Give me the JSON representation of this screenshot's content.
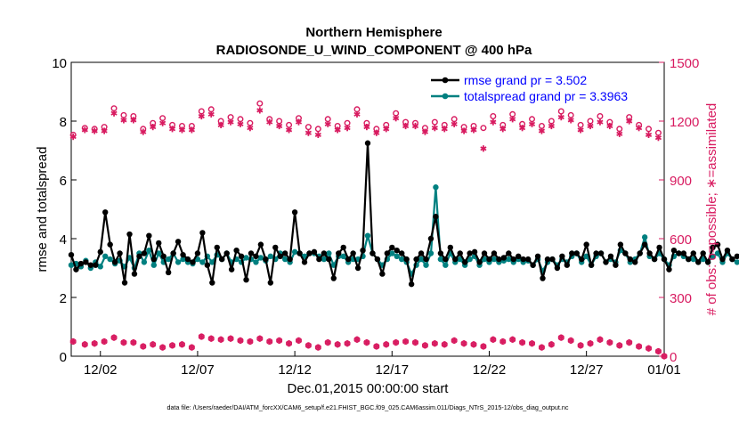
{
  "figure": {
    "title_line1": "Northern Hemisphere",
    "title_line2": "RADIOSONDE_U_WIND_COMPONENT @ 400 hPa",
    "xlabel": "Dec.01,2015 00:00:00 start",
    "ylabel_left": "rmse and totalspread",
    "ylabel_right": "# of obs: o=possible; ∗=assimilated",
    "footer": "data file: /Users/raeder/DAI/ATM_forcXX/CAM6_setup/f.e21.FHIST_BGC.f09_025.CAM6assim.011/Diags_NTrS_2015-12/obs_diag_output.nc",
    "colors": {
      "rmse": "#000000",
      "spread": "#008080",
      "obs": "#d81b60",
      "legend_text": "#0000ff"
    }
  },
  "chart_data": {
    "type": "line",
    "title": "Northern Hemisphere / RADIOSONDE_U_WIND_COMPONENT @ 400 hPa",
    "xlabel": "Dec.01,2015 00:00:00 start",
    "ylabel": "rmse and totalspread",
    "y2label": "# of obs: o=possible; ∗=assimilated",
    "xlim": [
      0.5,
      31.0
    ],
    "ylim": [
      0,
      10
    ],
    "y2lim": [
      0,
      1500
    ],
    "x_ticks": [
      2,
      7,
      12,
      17,
      22,
      27,
      31
    ],
    "x_tick_labels": [
      "12/02",
      "12/07",
      "12/12",
      "12/17",
      "12/22",
      "12/27",
      "01/01"
    ],
    "y_ticks": [
      0,
      2,
      4,
      6,
      8,
      10
    ],
    "y2_ticks": [
      0,
      300,
      600,
      900,
      1200,
      1500
    ],
    "grid": false,
    "legend": [
      {
        "label": "rmse grand pr = 3.502",
        "series": "rmse"
      },
      {
        "label": "totalspread grand pr = 3.3963",
        "series": "spread"
      }
    ],
    "legend_position": "top-right",
    "x_start": 0.5,
    "x_step": 0.25,
    "series": [
      {
        "name": "rmse",
        "axis": "left",
        "values": [
          3.45,
          2.95,
          3.15,
          3.2,
          3.1,
          3.1,
          3.55,
          4.9,
          3.8,
          3.2,
          3.5,
          2.5,
          4.15,
          2.8,
          3.4,
          3.5,
          4.1,
          3.3,
          3.85,
          3.4,
          2.85,
          3.5,
          3.9,
          3.45,
          3.3,
          3.2,
          3.5,
          4.2,
          3.1,
          2.5,
          3.7,
          3.3,
          3.5,
          2.95,
          3.6,
          3.4,
          2.6,
          3.5,
          3.4,
          3.8,
          3.3,
          2.5,
          3.7,
          3.4,
          3.5,
          3.3,
          4.9,
          3.5,
          3.2,
          3.5,
          3.55,
          3.3,
          3.5,
          3.3,
          2.65,
          3.5,
          3.7,
          3.3,
          3.5,
          3.0,
          3.6,
          7.25,
          3.5,
          3.3,
          2.8,
          3.5,
          3.7,
          3.6,
          3.5,
          3.3,
          2.45,
          3.3,
          3.5,
          3.3,
          4.0,
          4.75,
          3.5,
          3.3,
          3.7,
          3.3,
          3.5,
          3.2,
          3.5,
          3.55,
          3.2,
          3.5,
          3.3,
          3.5,
          3.3,
          3.35,
          3.5,
          3.3,
          3.4,
          3.3,
          3.3,
          3.1,
          3.4,
          2.65,
          3.3,
          3.3,
          3.0,
          3.4,
          3.1,
          3.5,
          3.5,
          3.3,
          3.8,
          3.1,
          3.5,
          3.5,
          3.2,
          3.4,
          3.1,
          3.8,
          3.5,
          3.3,
          3.2,
          3.5,
          3.8,
          3.5,
          3.3,
          3.7,
          3.3,
          2.95,
          3.6,
          3.5,
          3.5,
          3.3,
          3.5,
          3.2,
          3.5,
          3.2,
          3.7,
          3.8,
          3.3,
          3.6,
          3.3,
          3.4,
          3.5,
          4.2,
          3.5,
          3.3,
          3.5,
          3.3,
          3.6,
          3.3,
          2.8,
          3.4,
          3.3,
          3.5,
          3.3,
          3.8,
          3.5,
          3.3,
          3.5,
          3.3,
          3.5,
          3.3,
          3.4,
          2.6,
          3.3,
          2.5,
          3.5,
          2.5,
          3.3,
          3.8,
          3.4,
          3.9,
          3.5,
          3.7,
          3.4,
          3.8,
          3.3,
          3.5,
          3.2,
          3.6,
          2.7,
          3.4,
          3.6,
          3.9
        ]
      },
      {
        "name": "totalspread",
        "axis": "left",
        "values": [
          3.1,
          3.15,
          3.05,
          3.25,
          3.0,
          3.2,
          3.05,
          3.4,
          3.3,
          3.15,
          3.25,
          3.05,
          3.35,
          3.0,
          3.5,
          3.2,
          3.6,
          3.1,
          3.5,
          3.2,
          3.3,
          3.5,
          3.2,
          3.3,
          3.2,
          3.15,
          3.3,
          3.2,
          3.4,
          3.2,
          3.45,
          3.3,
          3.5,
          3.2,
          3.3,
          3.2,
          3.35,
          3.3,
          3.2,
          3.35,
          3.25,
          3.4,
          3.3,
          3.5,
          3.3,
          3.2,
          3.55,
          3.5,
          3.4,
          3.5,
          3.5,
          3.4,
          3.3,
          3.5,
          3.1,
          3.4,
          3.4,
          3.2,
          3.3,
          3.3,
          3.4,
          4.1,
          3.5,
          3.3,
          3.1,
          3.3,
          3.5,
          3.4,
          3.3,
          3.2,
          2.8,
          3.1,
          3.3,
          3.1,
          3.5,
          5.75,
          3.3,
          3.1,
          3.5,
          3.2,
          3.3,
          3.1,
          3.3,
          3.4,
          3.1,
          3.3,
          3.2,
          3.3,
          3.2,
          3.25,
          3.3,
          3.2,
          3.3,
          3.2,
          3.25,
          3.1,
          3.3,
          2.9,
          3.2,
          3.3,
          3.1,
          3.3,
          3.2,
          3.4,
          3.5,
          3.2,
          3.4,
          3.1,
          3.4,
          3.5,
          3.2,
          3.3,
          3.2,
          3.6,
          3.5,
          3.2,
          3.3,
          3.5,
          4.05,
          3.4,
          3.3,
          3.5,
          3.3,
          3.1,
          3.4,
          3.5,
          3.4,
          3.3,
          3.3,
          3.2,
          3.3,
          3.2,
          3.4,
          3.5,
          3.2,
          3.5,
          3.3,
          3.2,
          3.3,
          3.8,
          3.4,
          3.2,
          3.3,
          3.2,
          3.4,
          3.2,
          3.0,
          3.3,
          3.2,
          3.3,
          3.2,
          3.5,
          3.3,
          3.2,
          3.3,
          3.2,
          3.4,
          3.2,
          3.3,
          3.0,
          3.2,
          2.95,
          3.3,
          3.0,
          3.2,
          3.4,
          3.2,
          3.5,
          3.3,
          3.4,
          3.3,
          3.5,
          3.2,
          3.3,
          3.2,
          3.4,
          3.1,
          3.3,
          3.4,
          3.5
        ]
      },
      {
        "name": "obs_possible",
        "axis": "right",
        "x": [
          0.6,
          1.2,
          1.7,
          2.2,
          2.7,
          3.2,
          3.7,
          4.2,
          4.7,
          5.2,
          5.7,
          6.2,
          6.7,
          7.2,
          7.7,
          8.2,
          8.7,
          9.2,
          9.7,
          10.2,
          10.7,
          11.2,
          11.7,
          12.2,
          12.7,
          13.2,
          13.7,
          14.2,
          14.7,
          15.2,
          15.7,
          16.2,
          16.7,
          17.2,
          17.7,
          18.2,
          18.7,
          19.2,
          19.7,
          20.2,
          20.7,
          21.2,
          21.7,
          22.2,
          22.7,
          23.2,
          23.7,
          24.2,
          24.7,
          25.2,
          25.7,
          26.2,
          26.7,
          27.2,
          27.7,
          28.2,
          28.7,
          29.2,
          29.7,
          30.2,
          30.7
        ],
        "values": [
          1130,
          1165,
          1160,
          1170,
          1265,
          1230,
          1225,
          1160,
          1190,
          1215,
          1180,
          1175,
          1175,
          1250,
          1260,
          1200,
          1220,
          1210,
          1190,
          1290,
          1210,
          1200,
          1180,
          1215,
          1170,
          1160,
          1210,
          1175,
          1190,
          1260,
          1190,
          1160,
          1180,
          1240,
          1195,
          1190,
          1165,
          1195,
          1180,
          1210,
          1170,
          1175,
          1165,
          1225,
          1180,
          1235,
          1185,
          1210,
          1175,
          1200,
          1250,
          1230,
          1180,
          1200,
          1225,
          1195,
          1160,
          1220,
          1180,
          1160,
          1140
        ]
      },
      {
        "name": "obs_assimilated",
        "axis": "right",
        "x": [
          0.6,
          1.2,
          1.7,
          2.2,
          2.7,
          3.2,
          3.7,
          4.2,
          4.7,
          5.2,
          5.7,
          6.2,
          6.7,
          7.2,
          7.7,
          8.2,
          8.7,
          9.2,
          9.7,
          10.2,
          10.7,
          11.2,
          11.7,
          12.2,
          12.7,
          13.2,
          13.7,
          14.2,
          14.7,
          15.2,
          15.7,
          16.2,
          16.7,
          17.2,
          17.7,
          18.2,
          18.7,
          19.2,
          19.7,
          20.2,
          20.7,
          21.2,
          21.7,
          22.2,
          22.7,
          23.2,
          23.7,
          24.2,
          24.7,
          25.2,
          25.7,
          26.2,
          26.7,
          27.2,
          27.7,
          28.2,
          28.7,
          29.2,
          29.7,
          30.2,
          30.7
        ],
        "values": [
          1120,
          1155,
          1150,
          1150,
          1240,
          1205,
          1205,
          1145,
          1170,
          1190,
          1160,
          1155,
          1155,
          1225,
          1235,
          1180,
          1195,
          1185,
          1165,
          1255,
          1195,
          1175,
          1155,
          1195,
          1140,
          1130,
          1185,
          1155,
          1165,
          1235,
          1170,
          1140,
          1160,
          1215,
          1175,
          1175,
          1145,
          1165,
          1160,
          1185,
          1150,
          1155,
          1060,
          1195,
          1160,
          1210,
          1165,
          1185,
          1150,
          1175,
          1220,
          1205,
          1155,
          1175,
          1195,
          1175,
          1135,
          1200,
          1165,
          1130,
          1115
        ]
      },
      {
        "name": "obs_bottom",
        "axis": "right",
        "x": [
          0.6,
          1.2,
          1.7,
          2.2,
          2.7,
          3.2,
          3.7,
          4.2,
          4.7,
          5.2,
          5.7,
          6.2,
          6.7,
          7.2,
          7.7,
          8.2,
          8.7,
          9.2,
          9.7,
          10.2,
          10.7,
          11.2,
          11.7,
          12.2,
          12.7,
          13.2,
          13.7,
          14.2,
          14.7,
          15.2,
          15.7,
          16.2,
          16.7,
          17.2,
          17.7,
          18.2,
          18.7,
          19.2,
          19.7,
          20.2,
          20.7,
          21.2,
          21.7,
          22.2,
          22.7,
          23.2,
          23.7,
          24.2,
          24.7,
          25.2,
          25.7,
          26.2,
          26.7,
          27.2,
          27.7,
          28.2,
          28.7,
          29.2,
          29.7,
          30.2,
          30.7,
          31.0
        ],
        "values": [
          75,
          60,
          65,
          75,
          95,
          70,
          70,
          50,
          60,
          45,
          55,
          60,
          45,
          100,
          90,
          85,
          90,
          80,
          75,
          90,
          75,
          80,
          65,
          80,
          55,
          45,
          70,
          60,
          65,
          85,
          70,
          50,
          60,
          70,
          75,
          70,
          55,
          65,
          60,
          80,
          65,
          60,
          50,
          85,
          75,
          85,
          70,
          65,
          45,
          60,
          95,
          80,
          55,
          65,
          85,
          70,
          55,
          70,
          50,
          40,
          25,
          0
        ]
      }
    ]
  }
}
